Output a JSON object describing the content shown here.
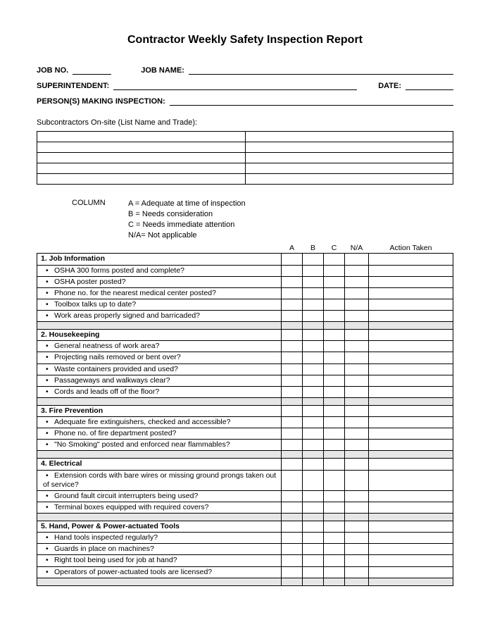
{
  "title": "Contractor Weekly Safety Inspection Report",
  "meta": {
    "job_no_label": "JOB NO.",
    "job_name_label": "JOB NAME:",
    "superintendent_label": "SUPERINTENDENT:",
    "date_label": "DATE:",
    "persons_label": "PERSON(S) MAKING INSPECTION:"
  },
  "subcontractors_label": "Subcontractors On-site (List Name and Trade):",
  "legend": {
    "column_label": "COLUMN",
    "a": "A = Adequate at time of inspection",
    "b": "B = Needs consideration",
    "c": "C = Needs immediate attention",
    "na": "N/A= Not applicable"
  },
  "check_headers": {
    "a": "A",
    "b": "B",
    "c": "C",
    "na": "N/A",
    "action": "Action Taken"
  },
  "sections": [
    {
      "heading": "1. Job Information",
      "items": [
        "OSHA 300 forms posted and complete?",
        "OSHA poster posted?",
        "Phone no. for the nearest medical center posted?",
        "Toolbox talks up to date?",
        "Work areas properly signed and barricaded?"
      ]
    },
    {
      "heading": "2. Housekeeping",
      "items": [
        "General neatness of work area?",
        "Projecting nails removed or bent over?",
        "Waste containers provided and used?",
        "Passageways and walkways clear?",
        "Cords and leads off of the floor?"
      ]
    },
    {
      "heading": "3. Fire Prevention",
      "items": [
        "Adequate fire extinguishers, checked and accessible?",
        "Phone no. of fire department posted?",
        "\"No Smoking\" posted and enforced near flammables?"
      ]
    },
    {
      "heading": "4. Electrical",
      "items": [
        "Extension cords with bare wires or missing ground prongs taken out of service?",
        "Ground fault circuit interrupters being used?",
        "Terminal boxes equipped with required covers?"
      ]
    },
    {
      "heading": "5. Hand, Power & Power-actuated Tools",
      "items": [
        "Hand tools inspected regularly?",
        "Guards in place on machines?",
        "Right tool being used for job at hand?",
        "Operators of power-actuated tools are licensed?"
      ]
    }
  ],
  "colors": {
    "text": "#000000",
    "background": "#ffffff",
    "spacer_bg": "#e6e6e6",
    "border": "#000000"
  }
}
